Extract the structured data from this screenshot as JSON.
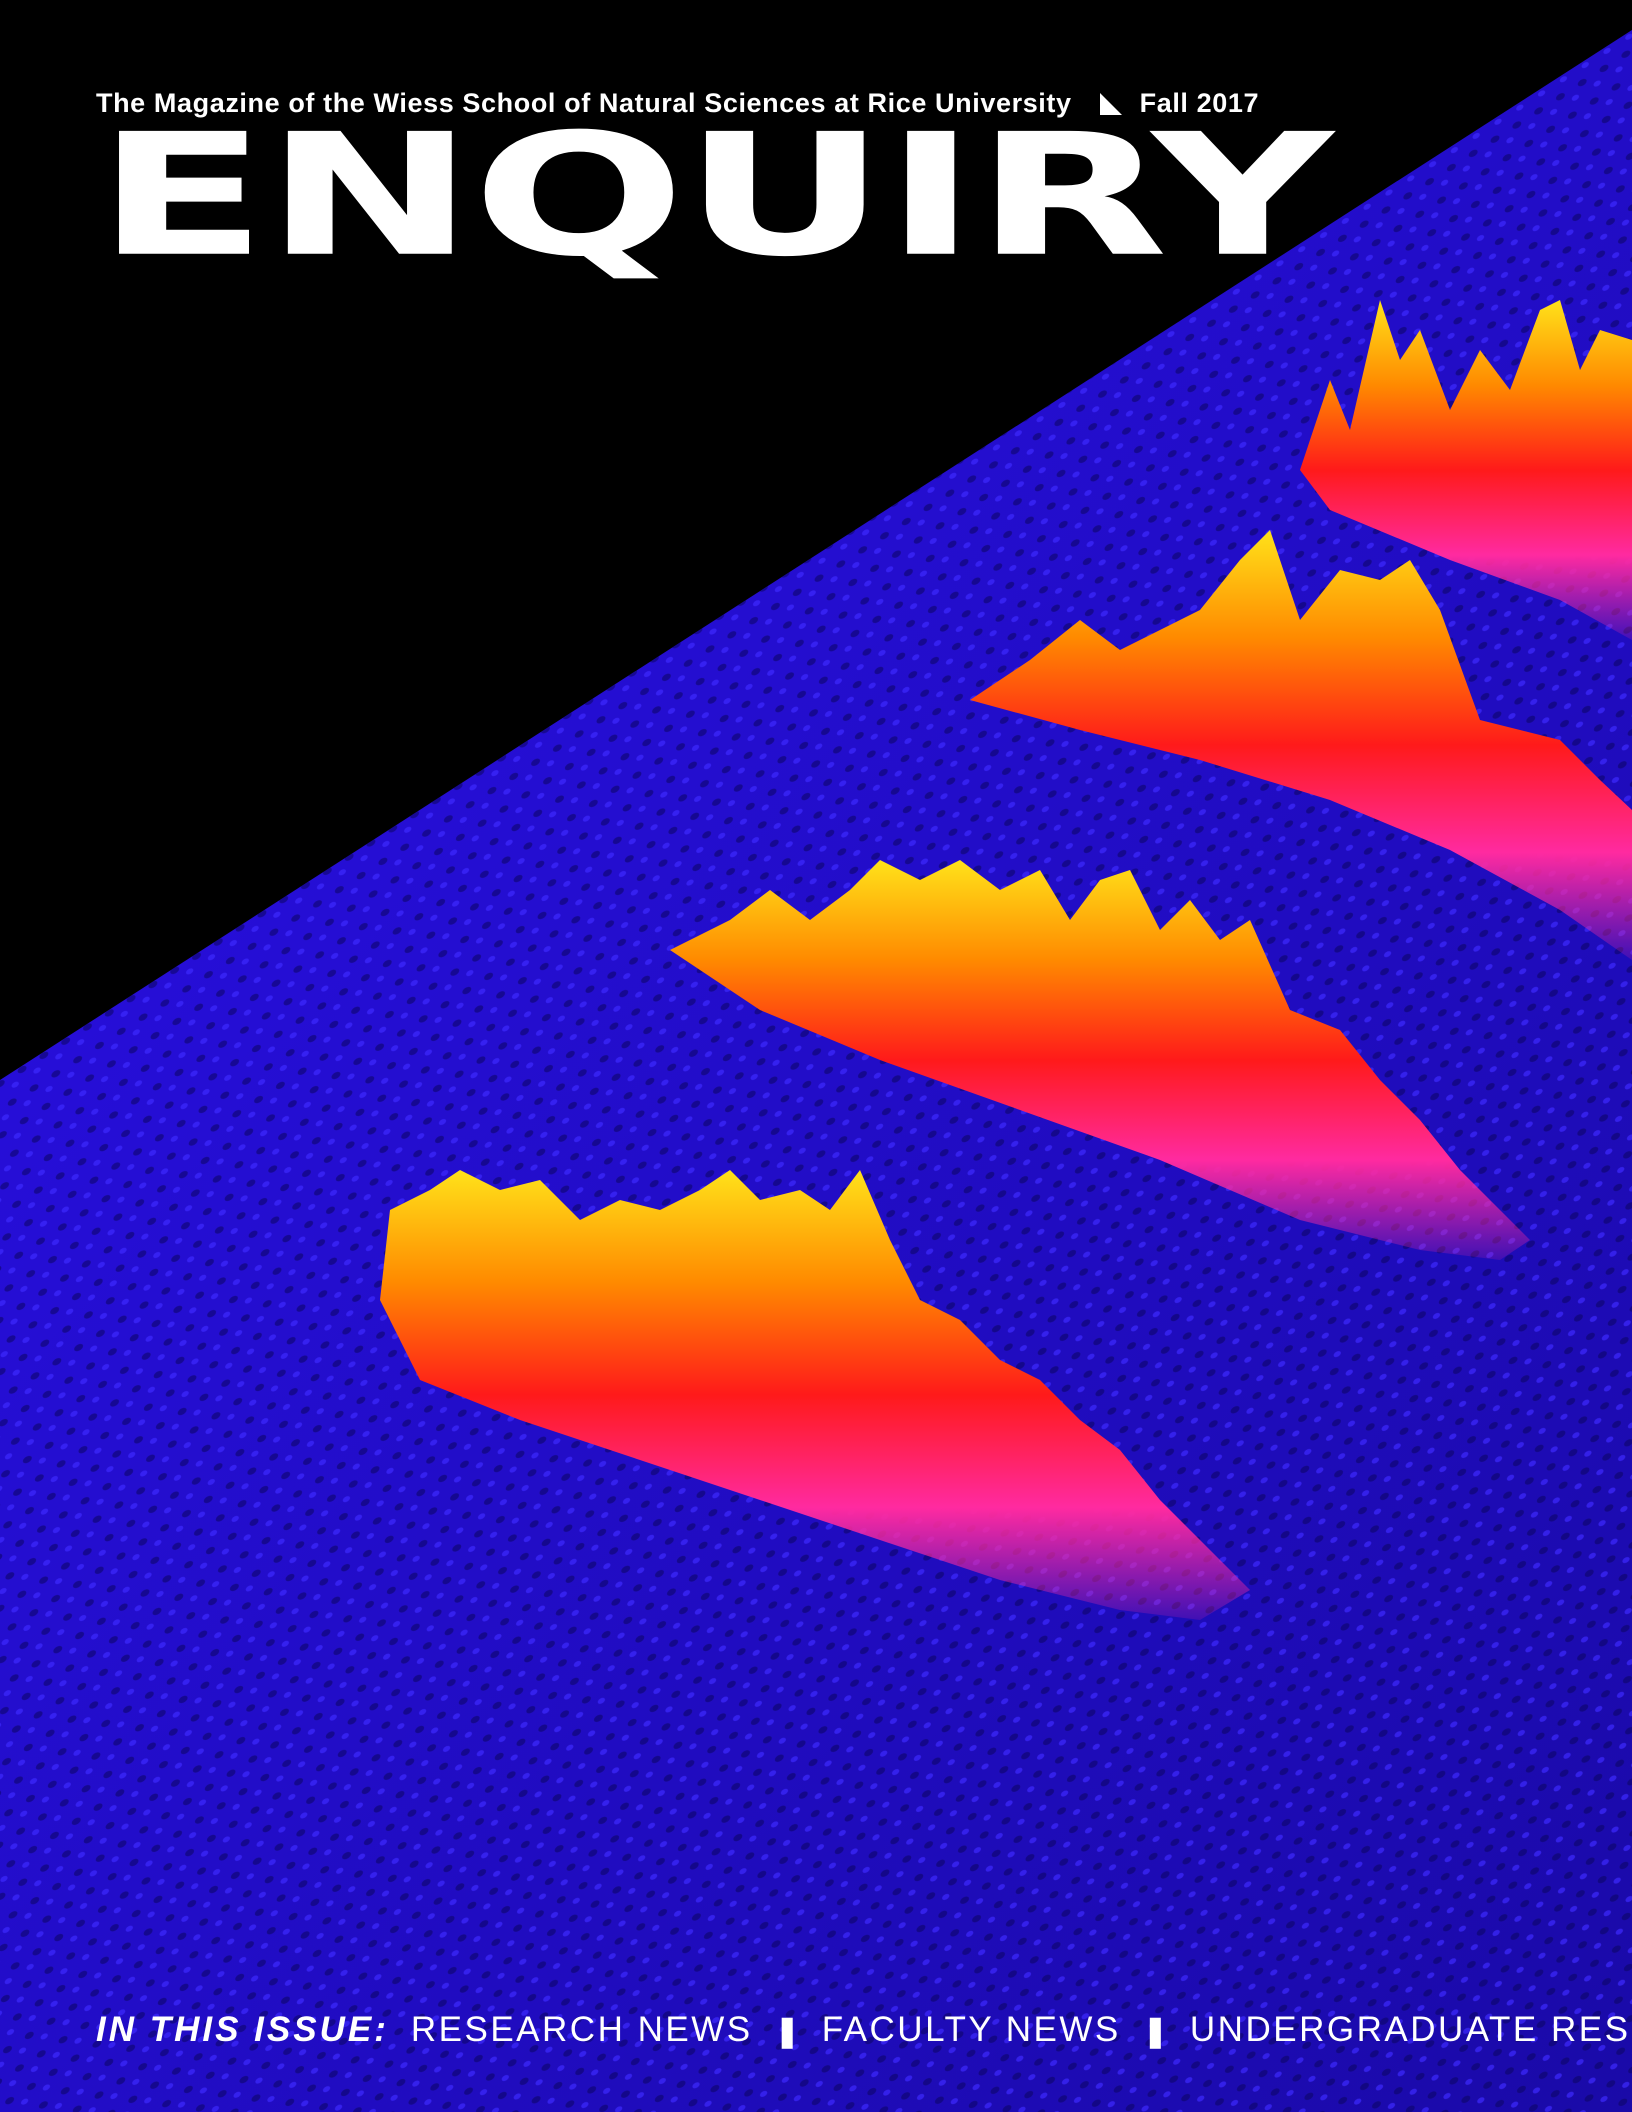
{
  "cover": {
    "tagline": "The Magazine of the Wiess School of Natural Sciences at Rice University",
    "issue": "Fall 2017",
    "title": "ENQUIRY",
    "footer": {
      "lead": "IN THIS ISSUE:",
      "items": [
        "RESEARCH NEWS",
        "FACULTY NEWS",
        "UNDERGRADUATE RESEARCH"
      ],
      "separator": "❚"
    },
    "image": {
      "subject": "3D surface plot of intensity peaks along a diagonal band",
      "colors": {
        "background": "#000000",
        "band": "#2a10e8",
        "band_dark": "#1a0aa8",
        "low": "#ff2aa0",
        "mid": "#ff1a1a",
        "high": "#ff8a00",
        "peak": "#ffe21a"
      }
    }
  }
}
